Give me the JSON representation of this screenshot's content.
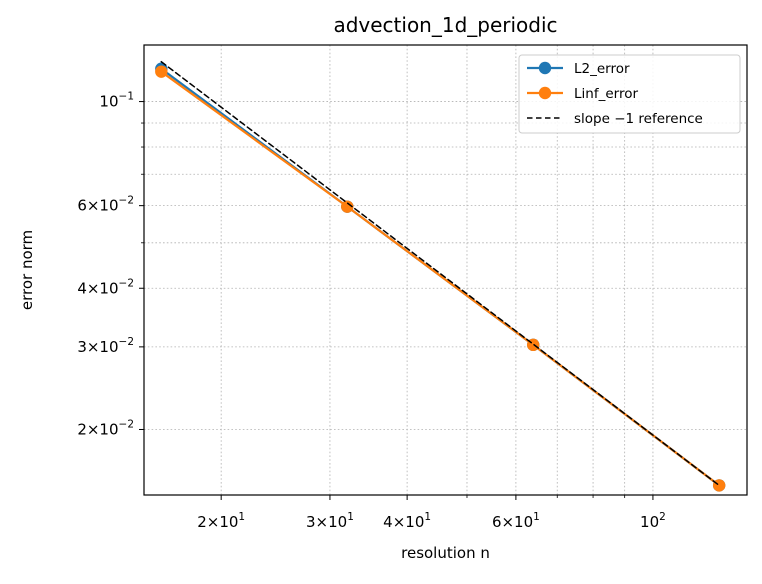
{
  "chart_data": {
    "type": "line",
    "title": "advection_1d_periodic",
    "xlabel": "resolution n",
    "ylabel": "error norm",
    "xscale": "log",
    "yscale": "log",
    "xlim": [
      15.0,
      142.0
    ],
    "ylim": [
      0.0145,
      0.132
    ],
    "grid": true,
    "legend_position": "top-right",
    "x": [
      16,
      32,
      64,
      128
    ],
    "series": [
      {
        "name": "L2_error",
        "color": "#1f77b4",
        "style": "solid",
        "marker": "circle",
        "values": [
          0.1175,
          0.0597,
          0.0303,
          0.0152
        ]
      },
      {
        "name": "Linf_error",
        "color": "#ff7f0e",
        "style": "solid",
        "marker": "circle",
        "values": [
          0.1158,
          0.0597,
          0.0303,
          0.0152
        ]
      },
      {
        "name": "slope −1 reference",
        "color": "#000000",
        "style": "dashed",
        "marker": "none",
        "values": [
          0.1216,
          0.0608,
          0.0304,
          0.0152
        ]
      }
    ],
    "xticks": [
      {
        "value": 20,
        "base": "2×10",
        "exp": "1"
      },
      {
        "value": 30,
        "base": "3×10",
        "exp": "1"
      },
      {
        "value": 40,
        "base": "4×10",
        "exp": "1"
      },
      {
        "value": 60,
        "base": "6×10",
        "exp": "1"
      },
      {
        "value": 100,
        "base": "10",
        "exp": "2"
      }
    ],
    "yticks": [
      {
        "value": 0.1,
        "base": "10",
        "exp": "−1"
      },
      {
        "value": 0.06,
        "base": "6×10",
        "exp": "−2"
      },
      {
        "value": 0.04,
        "base": "4×10",
        "exp": "−2"
      },
      {
        "value": 0.03,
        "base": "3×10",
        "exp": "−2"
      },
      {
        "value": 0.02,
        "base": "2×10",
        "exp": "−2"
      }
    ],
    "x_minor_ticks": [
      50,
      70,
      80,
      90
    ],
    "y_minor_ticks": [
      0.05,
      0.07,
      0.08,
      0.09
    ]
  }
}
